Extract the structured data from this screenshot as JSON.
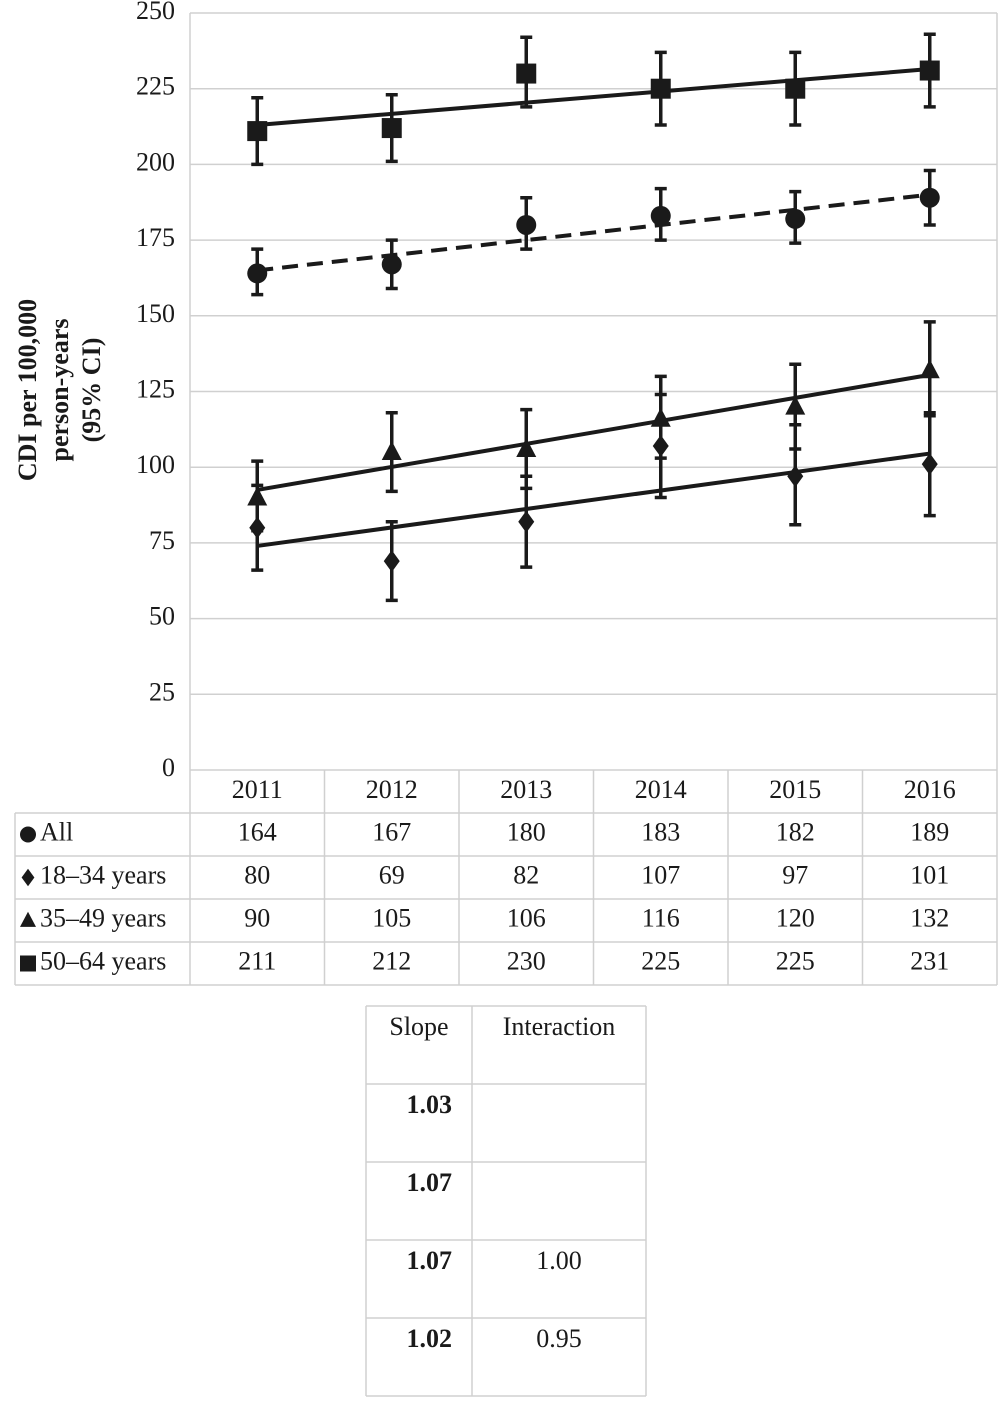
{
  "chart_data": {
    "type": "line",
    "ylabel": [
      "CDI per 100,000",
      "person-years",
      "(95% CI)"
    ],
    "categories": [
      "2011",
      "2012",
      "2013",
      "2014",
      "2015",
      "2016"
    ],
    "ylim": [
      0,
      250
    ],
    "yticks": [
      0,
      25,
      50,
      75,
      100,
      125,
      150,
      175,
      200,
      225,
      250
    ],
    "grid": true,
    "series": [
      {
        "name": "All",
        "marker": "circle",
        "color": "#1a1a1a",
        "dashed": true,
        "values": [
          164,
          167,
          180,
          183,
          182,
          189
        ],
        "ci_low": [
          157,
          159,
          172,
          175,
          174,
          180
        ],
        "ci_high": [
          172,
          175,
          189,
          192,
          191,
          198
        ],
        "trend": [
          165,
          190
        ]
      },
      {
        "name": "18–34 years",
        "marker": "diamond",
        "color": "#1a1a1a",
        "dashed": false,
        "values": [
          80,
          69,
          82,
          107,
          97,
          101
        ],
        "ci_low": [
          66,
          56,
          67,
          90,
          81,
          84
        ],
        "ci_high": [
          94,
          82,
          97,
          124,
          114,
          118
        ],
        "trend": [
          74,
          104.5
        ]
      },
      {
        "name": "35–49 years",
        "marker": "triangle",
        "color": "#1a1a1a",
        "dashed": false,
        "values": [
          90,
          105,
          106,
          116,
          120,
          132
        ],
        "ci_low": [
          79,
          92,
          93,
          103,
          106,
          117
        ],
        "ci_high": [
          102,
          118,
          119,
          130,
          134,
          148
        ],
        "trend": [
          92.5,
          130.5
        ]
      },
      {
        "name": "50–64 years",
        "marker": "square",
        "color": "#1a1a1a",
        "dashed": false,
        "values": [
          211,
          212,
          230,
          225,
          225,
          231
        ],
        "ci_low": [
          200,
          201,
          219,
          213,
          213,
          219
        ],
        "ci_high": [
          222,
          223,
          242,
          237,
          237,
          243
        ],
        "trend": [
          213,
          231.5
        ]
      }
    ]
  },
  "slope_table": {
    "headers": [
      "Slope",
      "Interaction"
    ],
    "rows": [
      {
        "slope": "1.03"
      },
      {
        "slope": "1.07"
      },
      {
        "slope": "1.07",
        "interaction": "1.00"
      },
      {
        "slope": "1.02",
        "interaction": "0.95"
      }
    ]
  }
}
